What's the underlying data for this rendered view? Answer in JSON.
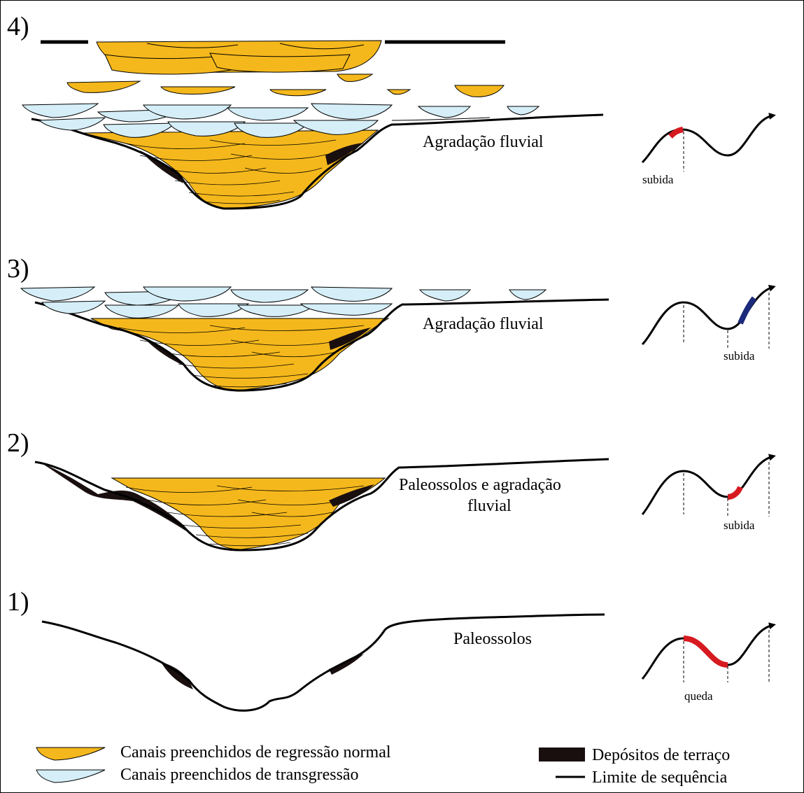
{
  "colors": {
    "regression_fill": "#F5B81C",
    "transgression_fill": "#D5EEF8",
    "terrace": "#1a0f0f",
    "rise_red": "#D71920",
    "rise_blue": "#1B2A7A",
    "line": "#000000"
  },
  "panels": [
    {
      "id": "4",
      "label": "4)",
      "text_lines": [
        "Agradação fluvial"
      ],
      "curve_label": "subida",
      "highlight": "red-early-rise"
    },
    {
      "id": "3",
      "label": "3)",
      "text_lines": [
        "Agradação fluvial"
      ],
      "curve_label": "subida",
      "highlight": "blue-late-rise"
    },
    {
      "id": "2",
      "label": "2)",
      "text_lines": [
        "Paleossolos e agradação",
        "fluvial"
      ],
      "curve_label": "subida",
      "highlight": "red-early-rise"
    },
    {
      "id": "1",
      "label": "1)",
      "text_lines": [
        "Paleossolos"
      ],
      "curve_label": "queda",
      "highlight": "red-fall"
    }
  ],
  "legend": {
    "regression": "Canais preenchidos de regressão normal",
    "transgression": "Canais preenchidos de transgressão",
    "terrace": "Depósitos de terraço",
    "sequence_boundary": "Limite de sequência"
  }
}
